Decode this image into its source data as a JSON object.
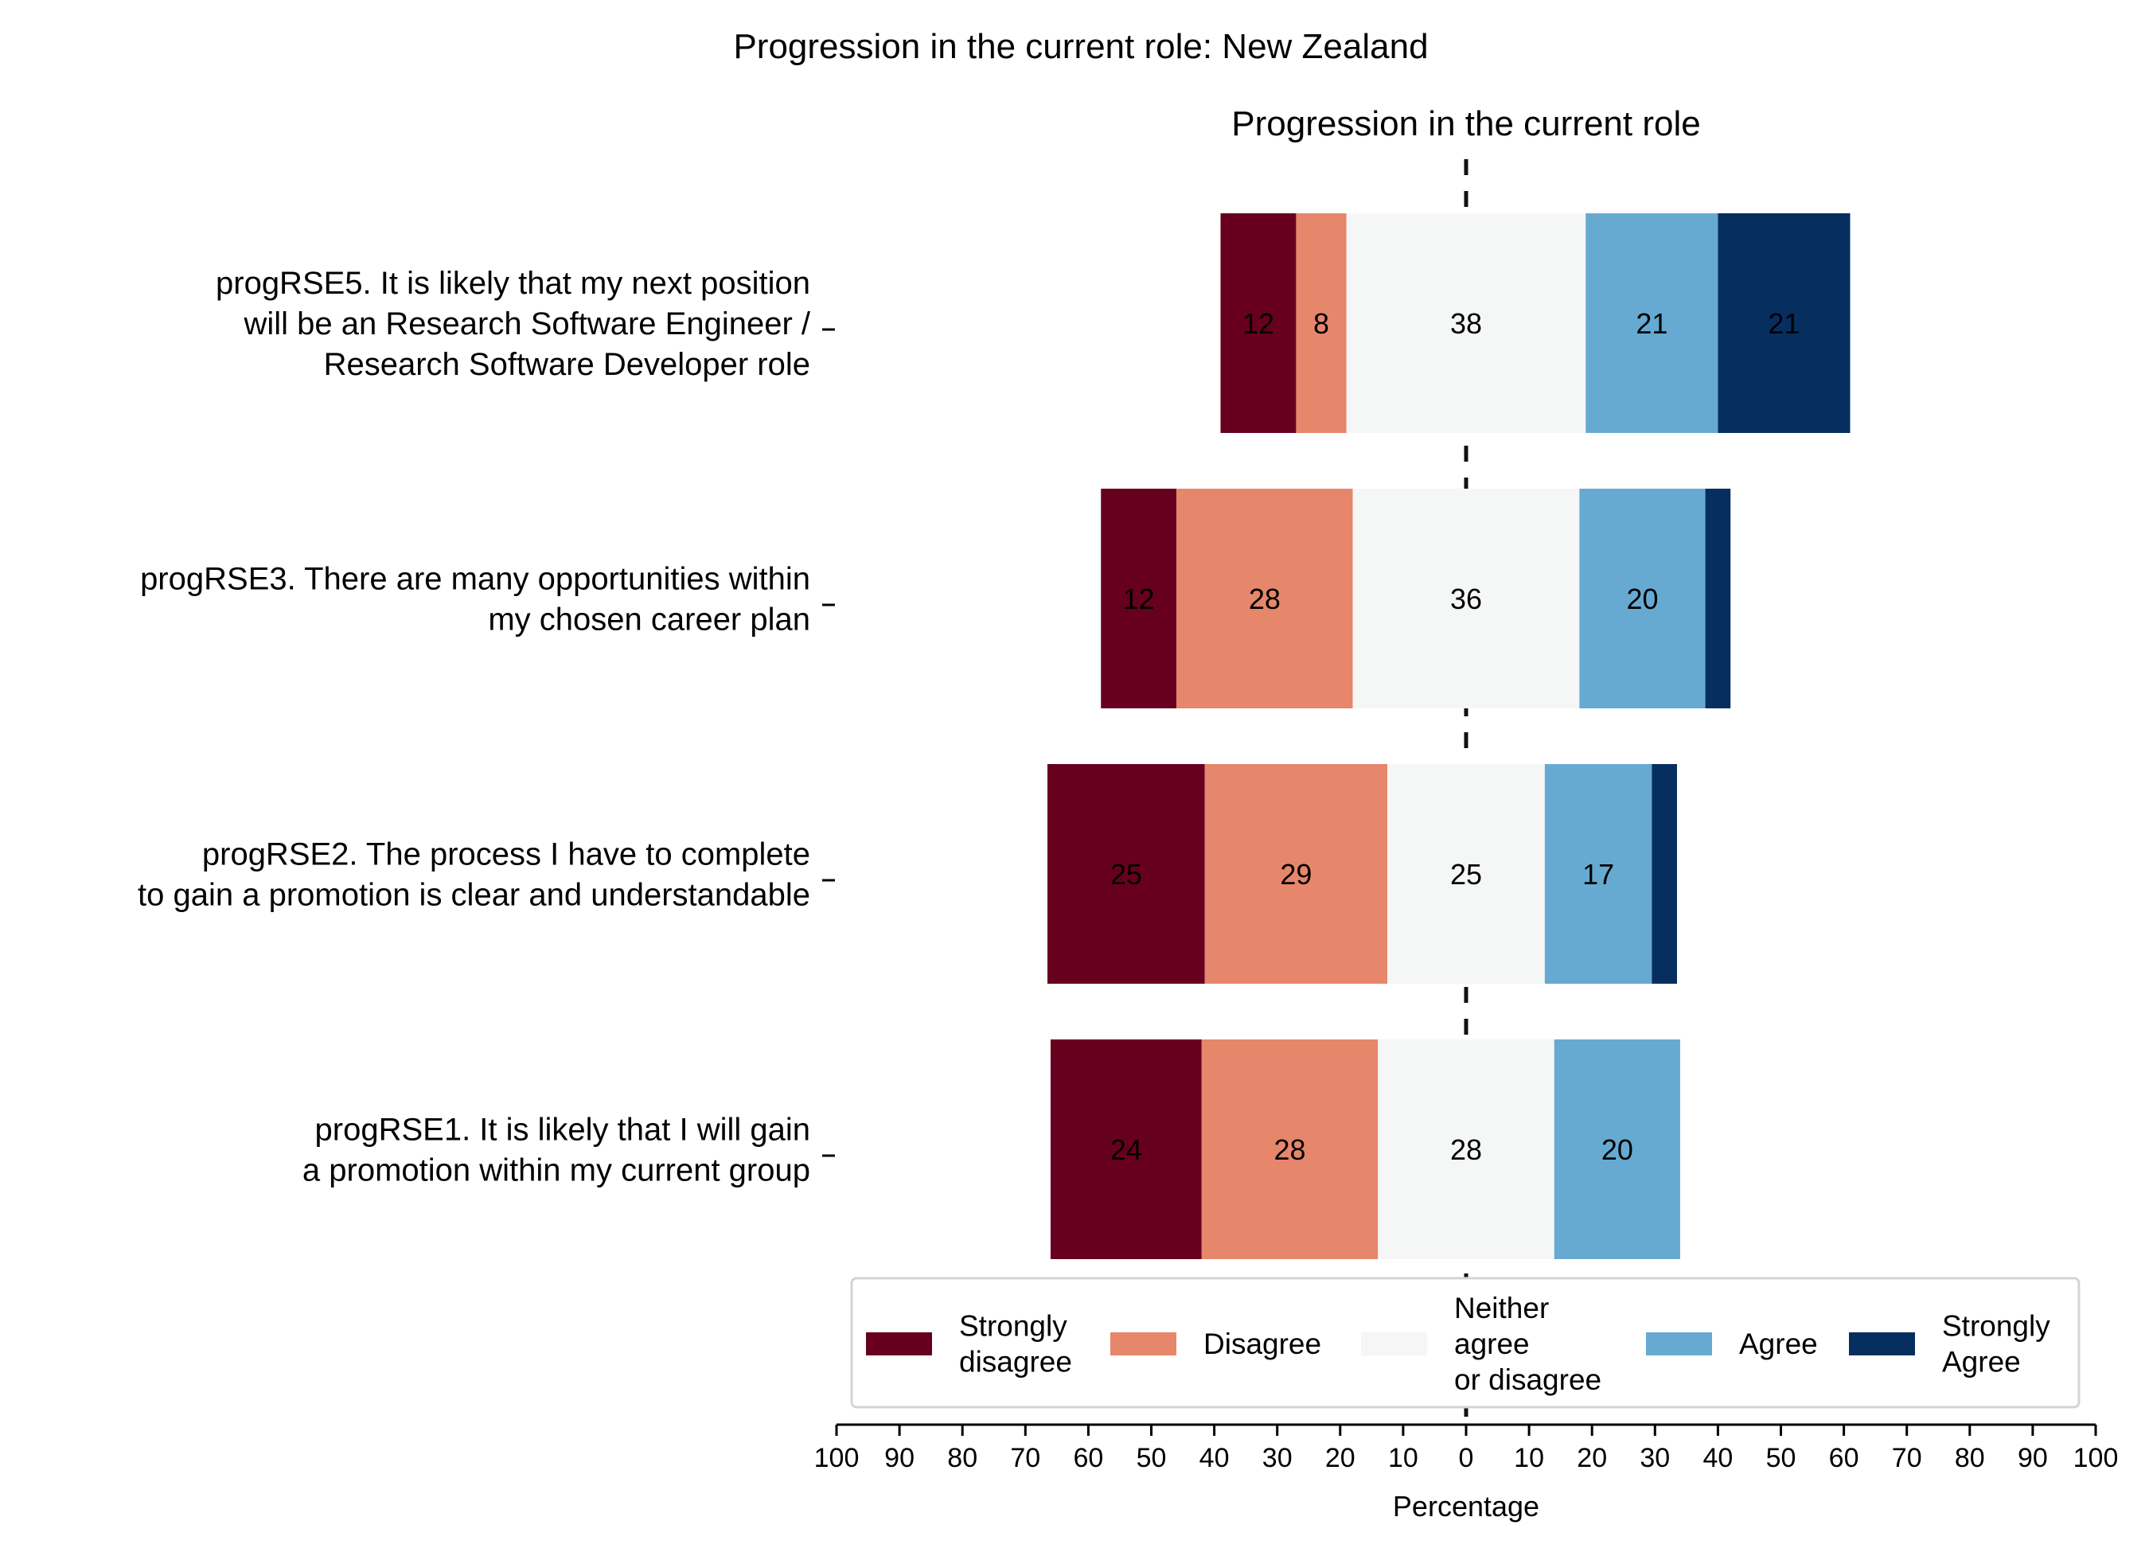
{
  "title": "Progression in the current role: New Zealand",
  "chart_data": {
    "type": "bar",
    "orientation": "horizontal-diverging",
    "subtitle": "Progression in the current role",
    "xlabel": "Percentage",
    "xlim": [
      -100,
      100
    ],
    "x_tick_labels": [
      "100",
      "90",
      "80",
      "70",
      "60",
      "50",
      "40",
      "30",
      "20",
      "10",
      "0",
      "10",
      "20",
      "30",
      "40",
      "50",
      "60",
      "70",
      "80",
      "90",
      "100"
    ],
    "center_line": "dashed",
    "categories": [
      {
        "id": "progRSE5",
        "label_lines": [
          "progRSE5. It is likely that my next position",
          "will be an Research Software Engineer /",
          "Research Software Developer role"
        ],
        "values": [
          12,
          8,
          38,
          21,
          21
        ]
      },
      {
        "id": "progRSE3",
        "label_lines": [
          "progRSE3. There are many opportunities within",
          "my chosen career plan"
        ],
        "values": [
          12,
          28,
          36,
          20,
          4
        ]
      },
      {
        "id": "progRSE2",
        "label_lines": [
          "progRSE2. The process I have to complete",
          "to gain a promotion is clear and understandable"
        ],
        "values": [
          25,
          29,
          25,
          17,
          4
        ]
      },
      {
        "id": "progRSE1",
        "label_lines": [
          "progRSE1. It is likely that I will gain",
          "a promotion within my current group"
        ],
        "values": [
          24,
          28,
          28,
          20,
          0
        ]
      }
    ],
    "data_label_min": 5,
    "series": [
      {
        "name": "Strongly disagree",
        "legend_lines": [
          "Strongly",
          "disagree"
        ],
        "color": "#67001f"
      },
      {
        "name": "Disagree",
        "legend_lines": [
          "Disagree"
        ],
        "color": "#e6866a"
      },
      {
        "name": "Neither agree or disagree",
        "legend_lines": [
          "Neither",
          "agree",
          "or disagree"
        ],
        "color": "#f5f6f6"
      },
      {
        "name": "Agree",
        "legend_lines": [
          "Agree"
        ],
        "color": "#67aad1"
      },
      {
        "name": "Strongly Agree",
        "legend_lines": [
          "Strongly",
          "Agree"
        ],
        "color": "#062f5f"
      }
    ],
    "legend_position": "bottom-right"
  }
}
